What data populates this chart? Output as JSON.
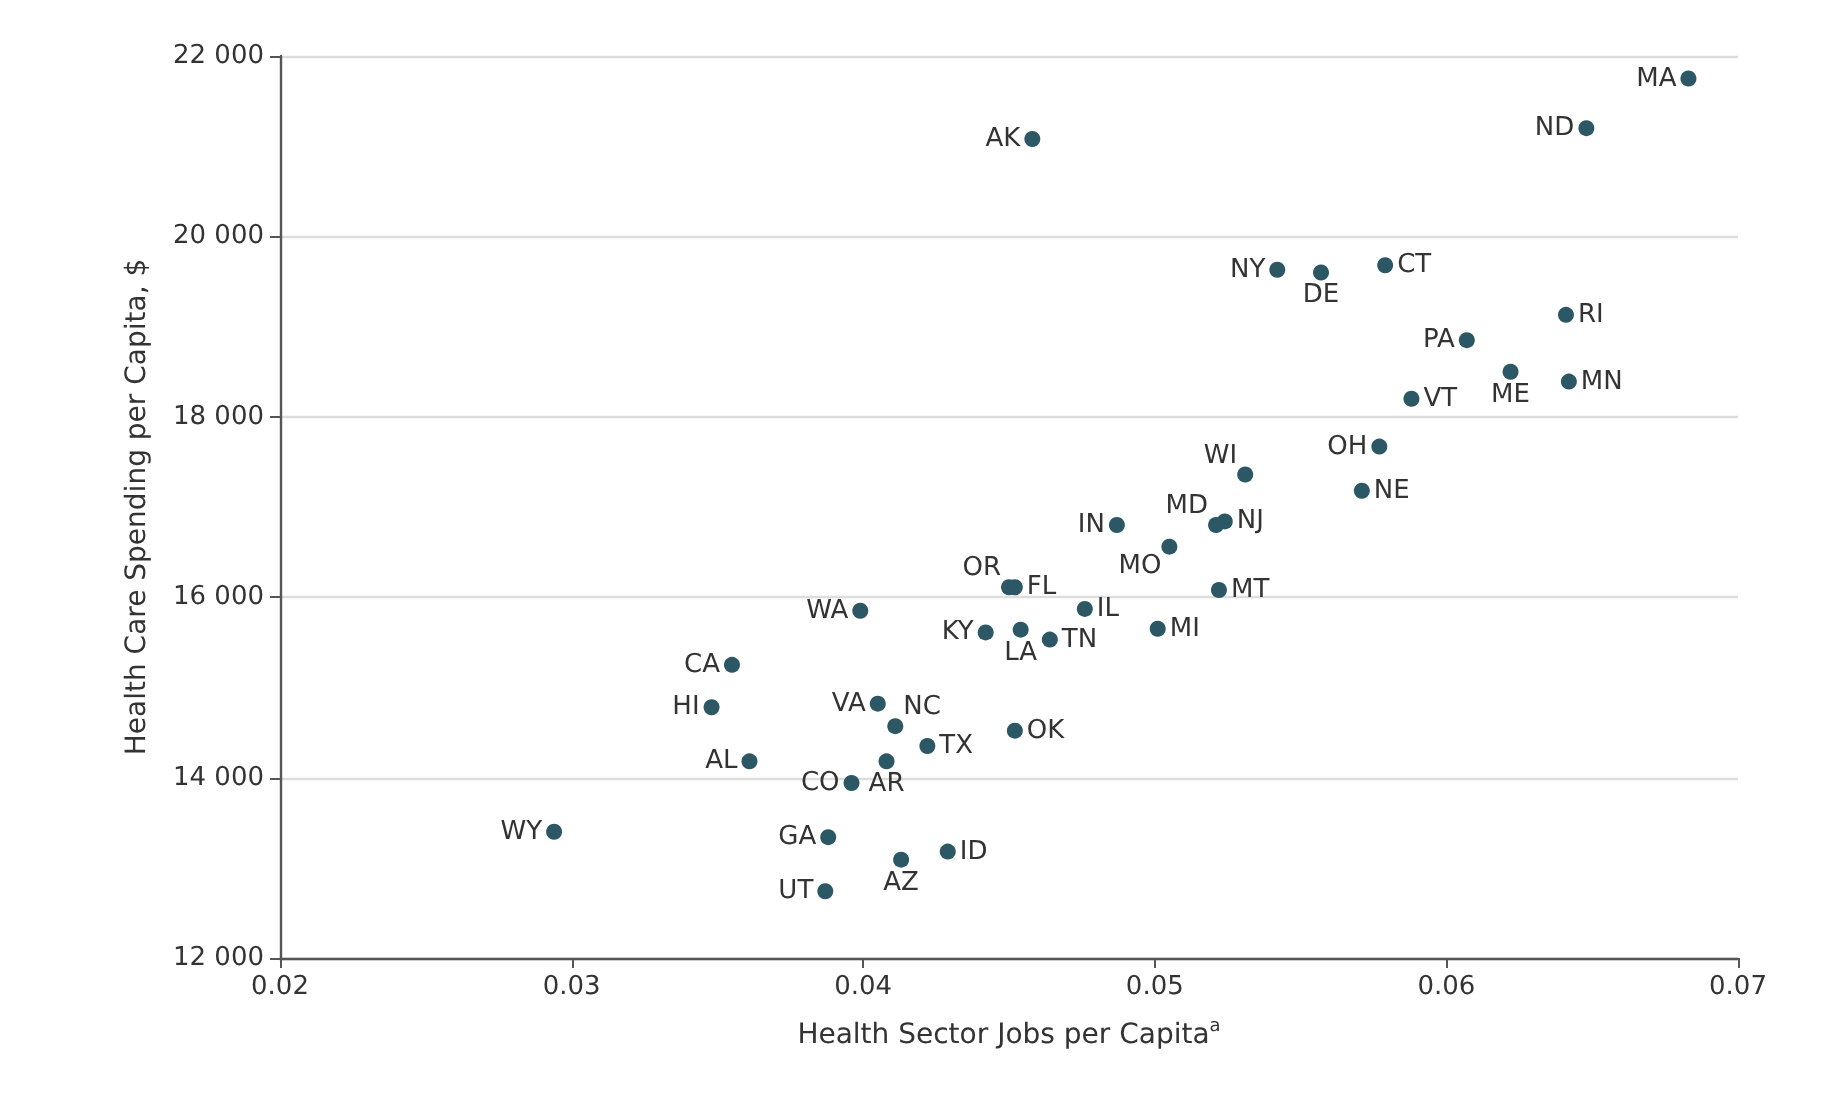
{
  "chart_data": {
    "type": "scatter",
    "xlabel": "Health Sector Jobs per Capita$^{a}$",
    "ylabel": "Health Care Spending per Capita, $",
    "x": [
      0.0683,
      0.0648,
      0.0458,
      0.0542,
      0.0557,
      0.0579,
      0.0641,
      0.0607,
      0.0622,
      0.0642,
      0.0588,
      0.0577,
      0.0531,
      0.0571,
      0.0487,
      0.0521,
      0.0524,
      0.0505,
      0.045,
      0.0452,
      0.0522,
      0.0476,
      0.0442,
      0.0454,
      0.0464,
      0.0501,
      0.0452,
      0.0399,
      0.0355,
      0.0348,
      0.0405,
      0.0411,
      0.0422,
      0.0361,
      0.0408,
      0.0396,
      0.0294,
      0.0388,
      0.0413,
      0.0429,
      0.0387
    ],
    "values": [
      21750,
      21200,
      21080,
      19630,
      19600,
      19680,
      19130,
      18850,
      18500,
      18390,
      18200,
      17670,
      17360,
      17180,
      16800,
      16800,
      16840,
      16560,
      16110,
      16110,
      16080,
      15870,
      15610,
      15640,
      15530,
      15650,
      14520,
      15850,
      15250,
      14780,
      14820,
      14570,
      14350,
      14180,
      14180,
      13940,
      13400,
      13340,
      13090,
      13180,
      12740
    ],
    "color": "#2c5865",
    "marker": "circle",
    "grid": "y",
    "xlim": [
      0.02,
      0.07
    ],
    "xticks": [
      0.02,
      0.03,
      0.04,
      0.05,
      0.06,
      0.07
    ],
    "ylim": [
      12000,
      22000
    ],
    "yticks": [
      {
        "value": 12000,
        "label": "12 000"
      },
      {
        "value": 14000,
        "label": "14 000"
      },
      {
        "value": 16000,
        "label": "16 000"
      },
      {
        "value": 18000,
        "label": "18 000"
      },
      {
        "value": 20000,
        "label": "20 000"
      },
      {
        "value": 22000,
        "label": "22 000"
      }
    ],
    "annotations": [
      {
        "text": "MA",
        "x": 0.0683,
        "y": 21750
      },
      {
        "text": "ND",
        "x": 0.0648,
        "y": 21200
      },
      {
        "text": "AK",
        "x": 0.0458,
        "y": 21080
      },
      {
        "text": "NY",
        "x": 0.0542,
        "y": 19630
      },
      {
        "text": "DE",
        "x": 0.0557,
        "y": 19600
      },
      {
        "text": "CT",
        "x": 0.0579,
        "y": 19680
      },
      {
        "text": "RI",
        "x": 0.0641,
        "y": 19130
      },
      {
        "text": "PA",
        "x": 0.0607,
        "y": 18850
      },
      {
        "text": "ME",
        "x": 0.0622,
        "y": 18500
      },
      {
        "text": "MN",
        "x": 0.0642,
        "y": 18390
      },
      {
        "text": "VT",
        "x": 0.0588,
        "y": 18200
      },
      {
        "text": "OH",
        "x": 0.0577,
        "y": 17670
      },
      {
        "text": "WI",
        "x": 0.0531,
        "y": 17360
      },
      {
        "text": "NE",
        "x": 0.0571,
        "y": 17180
      },
      {
        "text": "IN",
        "x": 0.0487,
        "y": 16800
      },
      {
        "text": "MD",
        "x": 0.0521,
        "y": 16800
      },
      {
        "text": "NJ",
        "x": 0.0524,
        "y": 16840
      },
      {
        "text": "MO",
        "x": 0.0505,
        "y": 16560
      },
      {
        "text": "OR",
        "x": 0.045,
        "y": 16110
      },
      {
        "text": "FL",
        "x": 0.0452,
        "y": 16110
      },
      {
        "text": "MT",
        "x": 0.0522,
        "y": 16080
      },
      {
        "text": "IL",
        "x": 0.0476,
        "y": 15870
      },
      {
        "text": "KY",
        "x": 0.0442,
        "y": 15610
      },
      {
        "text": "LA",
        "x": 0.0454,
        "y": 15640
      },
      {
        "text": "TN",
        "x": 0.0464,
        "y": 15530
      },
      {
        "text": "MI",
        "x": 0.0501,
        "y": 15650
      },
      {
        "text": "OK",
        "x": 0.0452,
        "y": 14520
      },
      {
        "text": "WA",
        "x": 0.0399,
        "y": 15850
      },
      {
        "text": "CA",
        "x": 0.0355,
        "y": 15250
      },
      {
        "text": "HI",
        "x": 0.0348,
        "y": 14780
      },
      {
        "text": "VA",
        "x": 0.0405,
        "y": 14820
      },
      {
        "text": "NC",
        "x": 0.0411,
        "y": 14570
      },
      {
        "text": "TX",
        "x": 0.0422,
        "y": 14350
      },
      {
        "text": "AL",
        "x": 0.0361,
        "y": 14180
      },
      {
        "text": "AR",
        "x": 0.0408,
        "y": 14180
      },
      {
        "text": "CO",
        "x": 0.0396,
        "y": 13940
      },
      {
        "text": "WY",
        "x": 0.0294,
        "y": 13400
      },
      {
        "text": "GA",
        "x": 0.0388,
        "y": 13340
      },
      {
        "text": "AZ",
        "x": 0.0413,
        "y": 13090
      },
      {
        "text": "ID",
        "x": 0.0429,
        "y": 13180
      },
      {
        "text": "UT",
        "x": 0.0387,
        "y": 12740
      }
    ]
  }
}
